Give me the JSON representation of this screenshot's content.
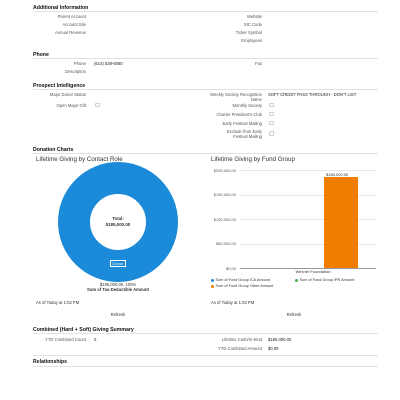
{
  "additional": {
    "header": "Additional Information",
    "parent_account_label": "Parent Account",
    "account_site_label": "Account Site",
    "annual_revenue_label": "Annual Revenue",
    "website_label": "Website",
    "sic_code_label": "SIC Code",
    "ticker_symbol_label": "Ticker Symbol",
    "employees_label": "Employees"
  },
  "phone": {
    "header": "Phone",
    "phone_label": "Phone",
    "phone_value": "(614) 539-6060",
    "fax_label": "Fax",
    "description_label": "Description"
  },
  "prospect": {
    "header": "Prospect Intelligence",
    "major_donor_status_label": "Major Donor Status",
    "open_major_gift_label": "Open Major Gift",
    "weekly_society_label": "Weekly Society Recognition Name",
    "weekly_society_value": "SOFT CREDIT PASS THROUGH - DON'T LIST",
    "monthly_society_label": "Monthly Society",
    "charter_presidents_label": "Charter President's Club",
    "early_festival_label": "Early Festival Mailing",
    "exclude_festival_label": "Exclude from Early Festival Mailing"
  },
  "donation_charts": {
    "header": "Donation Charts",
    "left_title": "Lifetime Giving by Contact Role",
    "donut_center_label": "Total:",
    "donut_center_value": "$185,000.00",
    "donut_segment_label": "Donor",
    "donut_caption_line1": "$185,000.00, 100%",
    "donut_caption_line2": "Sum of Tax-Deductible Amount",
    "right_title": "Lifetime Giving by Fund Group",
    "as_of_left": "As of Today at 1:02 PM",
    "as_of_right": "As of Today at 1:02 PM",
    "refresh_left": "Refresh",
    "refresh_right": "Refresh"
  },
  "chart_data": [
    {
      "type": "pie",
      "title": "Lifetime Giving by Contact Role",
      "categories": [
        "Donor"
      ],
      "values": [
        185000
      ],
      "colors": [
        "#1b8ad8"
      ]
    },
    {
      "type": "bar",
      "title": "Lifetime Giving by Fund Group",
      "categories": [
        "Wexner Foundation"
      ],
      "series": [
        {
          "name": "Sum of Fund Group ICA Amount",
          "values": [
            0
          ],
          "color": "#1b8ad8"
        },
        {
          "name": "Sum of Fund Group IPR Amount",
          "values": [
            0
          ],
          "color": "#4caf50"
        },
        {
          "name": "Sum of Fund Group Other Amount",
          "values": [
            185000
          ],
          "color": "#f07c00"
        }
      ],
      "y_ticks": [
        "$200,000.00",
        "$150,000.00",
        "$100,000.00",
        "$50,000.00",
        "$0.00"
      ],
      "bar_label": "$185,000.00",
      "ylim": [
        0,
        200000
      ],
      "legend_position": "bottom"
    }
  ],
  "combined": {
    "header": "Combined (Hard + Soft) Giving Summary",
    "ytd_count_label": "YTD Combined Count",
    "ytd_count_value": "0",
    "lifetime_cash_label": "Lifetime Cash/In-Kind",
    "lifetime_cash_value": "$185,000.00",
    "ytd_amount_label": "YTD Combined Amount",
    "ytd_amount_value": "$0.00"
  },
  "relationships": {
    "header": "Relationships"
  }
}
